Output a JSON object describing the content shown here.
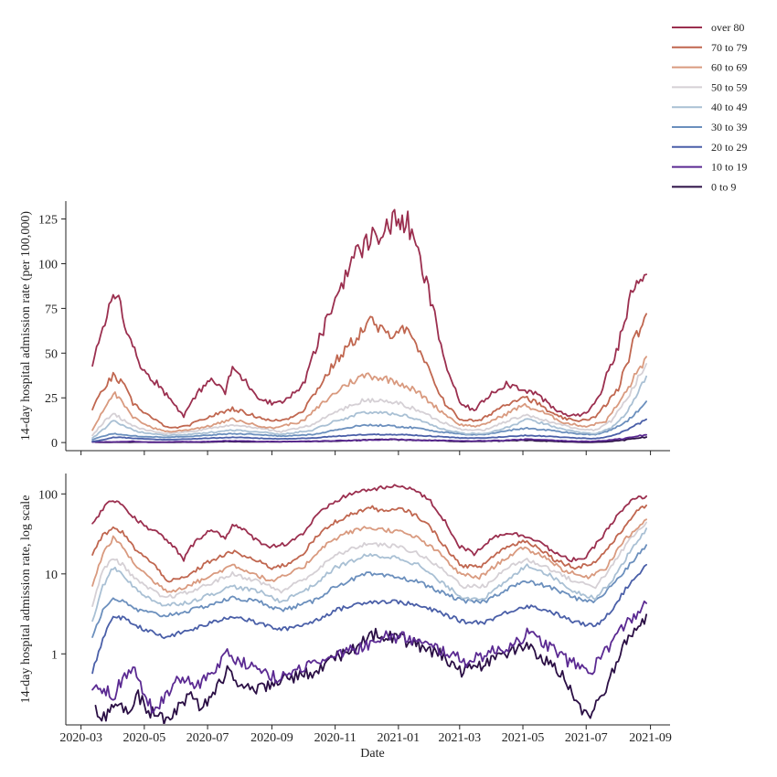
{
  "chart_data": [
    {
      "type": "line",
      "panel": "top",
      "ylabel": "14-day hospital admission rate (per 100,000)",
      "xlabel": "",
      "yscale": "linear",
      "ylim": [
        -3,
        135
      ],
      "yticks": [
        0,
        25,
        50,
        75,
        100,
        125
      ],
      "ytick_labels": [
        "0",
        "25",
        "50",
        "75",
        "100",
        "125"
      ],
      "show_xtick_labels": false
    },
    {
      "type": "line",
      "panel": "bottom",
      "ylabel": "14-day hospital admission rate, log scale",
      "xlabel": "Date",
      "yscale": "log",
      "ylim": [
        0.14,
        180
      ],
      "yticks": [
        1,
        10,
        100
      ],
      "ytick_labels": [
        "1",
        "10",
        "100"
      ],
      "show_xtick_labels": true
    }
  ],
  "x_axis": {
    "start": "2020-03-11",
    "end": "2021-09-04",
    "ticks": [
      "2020-03-01",
      "2020-05-01",
      "2020-07-01",
      "2020-09-01",
      "2020-11-01",
      "2021-01-01",
      "2021-03-01",
      "2021-05-01",
      "2021-07-01",
      "2021-09-01"
    ],
    "tick_labels": [
      "2020-03",
      "2020-05",
      "2020-07",
      "2020-09",
      "2020-11",
      "2021-01",
      "2021-03",
      "2021-05",
      "2021-07",
      "2021-09"
    ]
  },
  "legend": {
    "placement": "top-right, outside"
  },
  "series": [
    {
      "name": "over 80",
      "color": "#9b2f4f",
      "points": [
        [
          "2020-03-12",
          42
        ],
        [
          "2020-03-22",
          65
        ],
        [
          "2020-04-01",
          85
        ],
        [
          "2020-04-08",
          78
        ],
        [
          "2020-04-18",
          55
        ],
        [
          "2020-05-01",
          40
        ],
        [
          "2020-05-15",
          32
        ],
        [
          "2020-06-01",
          20
        ],
        [
          "2020-06-08",
          15
        ],
        [
          "2020-06-15",
          22
        ],
        [
          "2020-07-01",
          35
        ],
        [
          "2020-07-10",
          33
        ],
        [
          "2020-07-18",
          28
        ],
        [
          "2020-07-25",
          42
        ],
        [
          "2020-08-05",
          35
        ],
        [
          "2020-08-20",
          25
        ],
        [
          "2020-09-01",
          22
        ],
        [
          "2020-09-15",
          24
        ],
        [
          "2020-10-01",
          32
        ],
        [
          "2020-10-15",
          55
        ],
        [
          "2020-11-01",
          80
        ],
        [
          "2020-11-15",
          100
        ],
        [
          "2020-12-01",
          112
        ],
        [
          "2020-12-15",
          118
        ],
        [
          "2021-01-01",
          125
        ],
        [
          "2021-01-10",
          122
        ],
        [
          "2021-01-20",
          105
        ],
        [
          "2021-02-01",
          80
        ],
        [
          "2021-02-15",
          45
        ],
        [
          "2021-03-01",
          22
        ],
        [
          "2021-03-15",
          18
        ],
        [
          "2021-04-01",
          28
        ],
        [
          "2021-04-15",
          33
        ],
        [
          "2021-05-01",
          30
        ],
        [
          "2021-05-15",
          27
        ],
        [
          "2021-06-01",
          18
        ],
        [
          "2021-06-15",
          15
        ],
        [
          "2021-07-01",
          16
        ],
        [
          "2021-07-15",
          28
        ],
        [
          "2021-08-01",
          55
        ],
        [
          "2021-08-15",
          85
        ],
        [
          "2021-08-28",
          94
        ]
      ]
    },
    {
      "name": "70 to 79",
      "color": "#c0664f",
      "points": [
        [
          "2020-03-12",
          18
        ],
        [
          "2020-03-22",
          30
        ],
        [
          "2020-04-01",
          37
        ],
        [
          "2020-04-10",
          33
        ],
        [
          "2020-04-20",
          22
        ],
        [
          "2020-05-10",
          13
        ],
        [
          "2020-05-25",
          8
        ],
        [
          "2020-06-10",
          9
        ],
        [
          "2020-07-01",
          14
        ],
        [
          "2020-07-25",
          19
        ],
        [
          "2020-08-15",
          15
        ],
        [
          "2020-09-01",
          12
        ],
        [
          "2020-09-15",
          13
        ],
        [
          "2020-10-01",
          18
        ],
        [
          "2020-10-15",
          30
        ],
        [
          "2020-11-01",
          45
        ],
        [
          "2020-11-20",
          58
        ],
        [
          "2020-12-05",
          68
        ],
        [
          "2020-12-20",
          60
        ],
        [
          "2021-01-05",
          65
        ],
        [
          "2021-01-20",
          52
        ],
        [
          "2021-02-01",
          38
        ],
        [
          "2021-02-15",
          22
        ],
        [
          "2021-03-01",
          13
        ],
        [
          "2021-03-20",
          12
        ],
        [
          "2021-04-10",
          20
        ],
        [
          "2021-05-01",
          26
        ],
        [
          "2021-05-15",
          22
        ],
        [
          "2021-06-01",
          15
        ],
        [
          "2021-06-20",
          12
        ],
        [
          "2021-07-10",
          14
        ],
        [
          "2021-08-01",
          30
        ],
        [
          "2021-08-15",
          55
        ],
        [
          "2021-08-28",
          72
        ]
      ]
    },
    {
      "name": "60 to 69",
      "color": "#d99a7f",
      "points": [
        [
          "2020-03-12",
          7
        ],
        [
          "2020-03-22",
          18
        ],
        [
          "2020-04-01",
          28
        ],
        [
          "2020-04-10",
          22
        ],
        [
          "2020-04-20",
          14
        ],
        [
          "2020-05-10",
          8
        ],
        [
          "2020-05-25",
          6
        ],
        [
          "2020-06-10",
          7
        ],
        [
          "2020-07-01",
          9
        ],
        [
          "2020-07-25",
          13
        ],
        [
          "2020-08-15",
          10
        ],
        [
          "2020-09-01",
          8
        ],
        [
          "2020-10-01",
          12
        ],
        [
          "2020-10-20",
          22
        ],
        [
          "2020-11-10",
          32
        ],
        [
          "2020-12-01",
          38
        ],
        [
          "2021-01-01",
          34
        ],
        [
          "2021-01-20",
          28
        ],
        [
          "2021-02-10",
          18
        ],
        [
          "2021-03-01",
          10
        ],
        [
          "2021-03-20",
          9
        ],
        [
          "2021-04-15",
          16
        ],
        [
          "2021-05-01",
          21
        ],
        [
          "2021-05-20",
          17
        ],
        [
          "2021-06-10",
          11
        ],
        [
          "2021-07-01",
          9
        ],
        [
          "2021-07-20",
          12
        ],
        [
          "2021-08-05",
          25
        ],
        [
          "2021-08-28",
          48
        ]
      ]
    },
    {
      "name": "50 to 59",
      "color": "#d5d0d5",
      "points": [
        [
          "2020-03-12",
          4
        ],
        [
          "2020-03-22",
          11
        ],
        [
          "2020-04-01",
          16
        ],
        [
          "2020-04-10",
          13
        ],
        [
          "2020-04-25",
          8
        ],
        [
          "2020-05-20",
          5
        ],
        [
          "2020-06-15",
          6
        ],
        [
          "2020-07-25",
          10
        ],
        [
          "2020-08-20",
          8
        ],
        [
          "2020-09-10",
          6
        ],
        [
          "2020-10-10",
          10
        ],
        [
          "2020-11-01",
          17
        ],
        [
          "2020-12-01",
          24
        ],
        [
          "2021-01-01",
          22
        ],
        [
          "2021-01-20",
          18
        ],
        [
          "2021-02-10",
          12
        ],
        [
          "2021-03-05",
          7
        ],
        [
          "2021-03-25",
          7
        ],
        [
          "2021-04-20",
          13
        ],
        [
          "2021-05-05",
          15
        ],
        [
          "2021-05-25",
          12
        ],
        [
          "2021-06-20",
          8
        ],
        [
          "2021-07-10",
          7
        ],
        [
          "2021-07-25",
          12
        ],
        [
          "2021-08-10",
          25
        ],
        [
          "2021-08-28",
          44
        ]
      ]
    },
    {
      "name": "40 to 49",
      "color": "#a9c0d4",
      "points": [
        [
          "2020-03-12",
          2.5
        ],
        [
          "2020-03-22",
          7
        ],
        [
          "2020-04-01",
          12
        ],
        [
          "2020-04-10",
          10
        ],
        [
          "2020-04-25",
          6
        ],
        [
          "2020-05-20",
          4
        ],
        [
          "2020-06-15",
          4.5
        ],
        [
          "2020-07-25",
          7
        ],
        [
          "2020-08-20",
          6
        ],
        [
          "2020-09-10",
          4.5
        ],
        [
          "2020-10-10",
          7
        ],
        [
          "2020-11-01",
          12
        ],
        [
          "2020-12-01",
          17
        ],
        [
          "2021-01-01",
          16
        ],
        [
          "2021-01-20",
          13
        ],
        [
          "2021-02-10",
          8
        ],
        [
          "2021-03-05",
          5
        ],
        [
          "2021-03-25",
          5
        ],
        [
          "2021-04-20",
          9
        ],
        [
          "2021-05-05",
          13
        ],
        [
          "2021-05-25",
          10
        ],
        [
          "2021-06-20",
          6
        ],
        [
          "2021-07-10",
          5
        ],
        [
          "2021-07-25",
          8
        ],
        [
          "2021-08-10",
          17
        ],
        [
          "2021-08-28",
          37
        ]
      ]
    },
    {
      "name": "30 to 39",
      "color": "#6b8fbd",
      "points": [
        [
          "2020-03-12",
          1.7
        ],
        [
          "2020-03-22",
          3.5
        ],
        [
          "2020-04-01",
          5
        ],
        [
          "2020-04-10",
          4.5
        ],
        [
          "2020-04-25",
          3.5
        ],
        [
          "2020-05-20",
          3
        ],
        [
          "2020-06-15",
          3.5
        ],
        [
          "2020-07-25",
          5
        ],
        [
          "2020-08-20",
          4.5
        ],
        [
          "2020-09-10",
          3.5
        ],
        [
          "2020-10-10",
          4.5
        ],
        [
          "2020-11-01",
          7
        ],
        [
          "2020-12-01",
          10
        ],
        [
          "2021-01-01",
          9
        ],
        [
          "2021-01-20",
          8
        ],
        [
          "2021-02-10",
          6
        ],
        [
          "2021-03-05",
          4.5
        ],
        [
          "2021-03-25",
          4.5
        ],
        [
          "2021-04-20",
          7
        ],
        [
          "2021-05-05",
          8
        ],
        [
          "2021-05-25",
          7
        ],
        [
          "2021-06-20",
          5
        ],
        [
          "2021-07-10",
          4.5
        ],
        [
          "2021-07-25",
          7
        ],
        [
          "2021-08-10",
          12
        ],
        [
          "2021-08-28",
          23
        ]
      ]
    },
    {
      "name": "20 to 29",
      "color": "#4a5fa8",
      "points": [
        [
          "2020-03-12",
          0.6
        ],
        [
          "2020-03-22",
          1.5
        ],
        [
          "2020-04-01",
          3
        ],
        [
          "2020-04-10",
          2.8
        ],
        [
          "2020-04-25",
          2.2
        ],
        [
          "2020-05-20",
          1.6
        ],
        [
          "2020-06-15",
          2
        ],
        [
          "2020-07-25",
          3
        ],
        [
          "2020-08-20",
          2.4
        ],
        [
          "2020-09-10",
          2
        ],
        [
          "2020-10-10",
          2.5
        ],
        [
          "2020-11-01",
          3.5
        ],
        [
          "2020-12-01",
          4.5
        ],
        [
          "2021-01-01",
          4.5
        ],
        [
          "2021-01-20",
          4
        ],
        [
          "2021-02-10",
          3.3
        ],
        [
          "2021-03-05",
          2.5
        ],
        [
          "2021-03-25",
          2.5
        ],
        [
          "2021-04-20",
          3.5
        ],
        [
          "2021-05-05",
          4
        ],
        [
          "2021-05-25",
          3.5
        ],
        [
          "2021-06-20",
          2.5
        ],
        [
          "2021-07-10",
          2.2
        ],
        [
          "2021-07-25",
          3.5
        ],
        [
          "2021-08-10",
          7
        ],
        [
          "2021-08-28",
          13
        ]
      ]
    },
    {
      "name": "10 to 19",
      "color": "#5b2a92",
      "points": [
        [
          "2020-03-12",
          0.35
        ],
        [
          "2020-03-25",
          0.35
        ],
        [
          "2020-04-01",
          0.3
        ],
        [
          "2020-04-10",
          0.5
        ],
        [
          "2020-04-20",
          0.7
        ],
        [
          "2020-05-01",
          0.3
        ],
        [
          "2020-05-10",
          0.2
        ],
        [
          "2020-05-25",
          0.35
        ],
        [
          "2020-06-05",
          0.5
        ],
        [
          "2020-06-20",
          0.4
        ],
        [
          "2020-07-05",
          0.6
        ],
        [
          "2020-07-20",
          1
        ],
        [
          "2020-08-05",
          0.8
        ],
        [
          "2020-08-20",
          0.6
        ],
        [
          "2020-09-10",
          0.5
        ],
        [
          "2020-10-01",
          0.7
        ],
        [
          "2020-10-20",
          0.8
        ],
        [
          "2020-11-10",
          1.1
        ],
        [
          "2020-12-01",
          1.3
        ],
        [
          "2020-12-20",
          1.7
        ],
        [
          "2021-01-10",
          1.6
        ],
        [
          "2021-01-25",
          1.3
        ],
        [
          "2021-02-15",
          1.1
        ],
        [
          "2021-03-05",
          0.8
        ],
        [
          "2021-03-25",
          1
        ],
        [
          "2021-04-15",
          1.2
        ],
        [
          "2021-05-05",
          1.8
        ],
        [
          "2021-05-25",
          1.3
        ],
        [
          "2021-06-15",
          0.8
        ],
        [
          "2021-07-05",
          0.6
        ],
        [
          "2021-07-25",
          1.4
        ],
        [
          "2021-08-10",
          2.5
        ],
        [
          "2021-08-28",
          4.3
        ]
      ]
    },
    {
      "name": "0 to 9",
      "color": "#2b0f45",
      "points": [
        [
          "2020-03-15",
          0.2
        ],
        [
          "2020-03-25",
          0.16
        ],
        [
          "2020-04-05",
          0.25
        ],
        [
          "2020-04-15",
          0.2
        ],
        [
          "2020-04-25",
          0.3
        ],
        [
          "2020-05-05",
          0.2
        ],
        [
          "2020-05-20",
          0.15
        ],
        [
          "2020-06-01",
          0.2
        ],
        [
          "2020-06-15",
          0.3
        ],
        [
          "2020-06-25",
          0.2
        ],
        [
          "2020-07-10",
          0.4
        ],
        [
          "2020-07-20",
          0.6
        ],
        [
          "2020-08-01",
          0.45
        ],
        [
          "2020-08-15",
          0.35
        ],
        [
          "2020-09-01",
          0.45
        ],
        [
          "2020-09-20",
          0.5
        ],
        [
          "2020-10-10",
          0.6
        ],
        [
          "2020-11-01",
          0.9
        ],
        [
          "2020-11-20",
          1.2
        ],
        [
          "2020-12-10",
          1.8
        ],
        [
          "2021-01-01",
          1.6
        ],
        [
          "2021-01-20",
          1.3
        ],
        [
          "2021-02-10",
          1
        ],
        [
          "2021-03-01",
          0.6
        ],
        [
          "2021-03-20",
          0.7
        ],
        [
          "2021-04-10",
          0.9
        ],
        [
          "2021-05-01",
          1.3
        ],
        [
          "2021-05-20",
          0.9
        ],
        [
          "2021-06-10",
          0.5
        ],
        [
          "2021-06-25",
          0.2
        ],
        [
          "2021-07-05",
          0.16
        ],
        [
          "2021-07-20",
          0.4
        ],
        [
          "2021-08-05",
          1.2
        ],
        [
          "2021-08-28",
          3.1
        ]
      ]
    }
  ]
}
